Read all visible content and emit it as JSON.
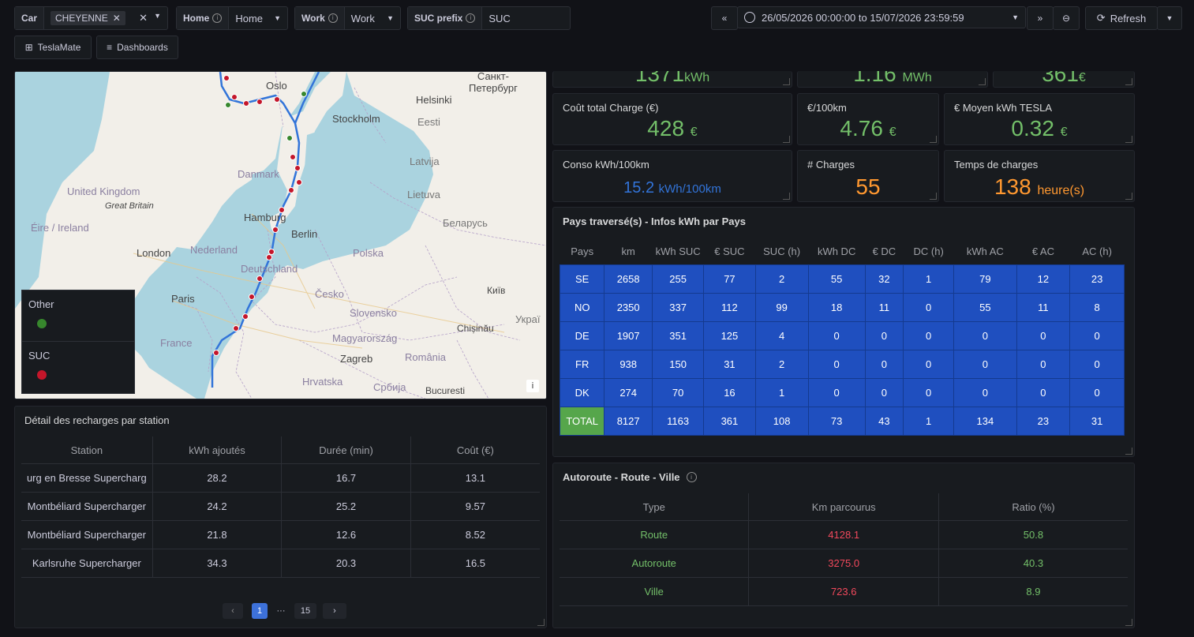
{
  "vars": {
    "car": {
      "label": "Car",
      "chip": "CHEYENNE"
    },
    "home": {
      "label": "Home",
      "value": "Home"
    },
    "work": {
      "label": "Work",
      "value": "Work"
    },
    "suc": {
      "label": "SUC prefix",
      "value": "SUC"
    }
  },
  "time_range": "26/05/2026 00:00:00 to 15/07/2026 23:59:59",
  "refresh_label": "Refresh",
  "nav": {
    "teslamate": "TeslaMate",
    "dashboards": "Dashboards"
  },
  "map": {
    "labels": {
      "oslo": "Oslo",
      "spb": "Санкт-\nПетербург",
      "helsinki": "Helsinki",
      "stockholm": "Stockholm",
      "eesti": "Eesti",
      "uk": "United Kingdom",
      "gb": "Great Britain",
      "ie": "Éire / Ireland",
      "danmark": "Danmark",
      "latvija": "Latvija",
      "lietuva": "Lietuva",
      "hamburg": "Hamburg",
      "berlin": "Berlin",
      "bel": "Беларусь",
      "london": "London",
      "nl": "Nederland",
      "polska": "Polska",
      "de": "Deutschland",
      "cesko": "Česko",
      "paris": "Paris",
      "kyiv": "Київ",
      "slov": "Slovensko",
      "ukr": "Украї",
      "france": "France",
      "mag": "Magyarország",
      "chis": "Chișinău",
      "zagreb": "Zagreb",
      "rom": "România",
      "hrv": "Hrvatska",
      "srb": "Србија",
      "buc": "Bucuresti"
    },
    "legend": [
      {
        "name": "Other",
        "color": "#37872d"
      },
      {
        "name": "SUC",
        "color": "#c4162a"
      }
    ]
  },
  "top_stats": [
    {
      "value": "1371",
      "unit": "kWh"
    },
    {
      "value": "1.16",
      "unit": "MWh"
    },
    {
      "value": "361",
      "unit": "€"
    }
  ],
  "stats": {
    "cost_total": {
      "title": "Coût total Charge (€)",
      "value": "428",
      "unit": "€",
      "color": "#73bf69"
    },
    "per100": {
      "title": "€/100km",
      "value": "4.76",
      "unit": "€",
      "color": "#73bf69"
    },
    "avg_kwh": {
      "title": "€ Moyen kWh TESLA",
      "value": "0.32",
      "unit": "€",
      "color": "#73bf69"
    },
    "conso": {
      "title": "Conso kWh/100km",
      "value": "15.2",
      "unit": "kWh/100km",
      "color": "#3274d9"
    },
    "charges": {
      "title": "# Charges",
      "value": "55",
      "unit": "",
      "color": "#ff9830"
    },
    "time": {
      "title": "Temps de charges",
      "value": "138",
      "unit": "heure(s)",
      "color": "#ff9830"
    }
  },
  "country_table": {
    "title": "Pays traversé(s) - Infos kWh par Pays",
    "headers": [
      "Pays",
      "km",
      "kWh SUC",
      "€ SUC",
      "SUC (h)",
      "kWh DC",
      "€ DC",
      "DC (h)",
      "kWh AC",
      "€ AC",
      "AC (h)"
    ],
    "rows": [
      [
        "SE",
        "2658",
        "255",
        "77",
        "2",
        "55",
        "32",
        "1",
        "79",
        "12",
        "23"
      ],
      [
        "NO",
        "2350",
        "337",
        "112",
        "99",
        "18",
        "11",
        "0",
        "55",
        "11",
        "8"
      ],
      [
        "DE",
        "1907",
        "351",
        "125",
        "4",
        "0",
        "0",
        "0",
        "0",
        "0",
        "0"
      ],
      [
        "FR",
        "938",
        "150",
        "31",
        "2",
        "0",
        "0",
        "0",
        "0",
        "0",
        "0"
      ],
      [
        "DK",
        "274",
        "70",
        "16",
        "1",
        "0",
        "0",
        "0",
        "0",
        "0",
        "0"
      ],
      [
        "TOTAL",
        "8127",
        "1163",
        "361",
        "108",
        "73",
        "43",
        "1",
        "134",
        "23",
        "31"
      ]
    ]
  },
  "station_table": {
    "title": "Détail des recharges par station",
    "headers": [
      "Station",
      "kWh ajoutés",
      "Durée (min)",
      "Coût (€)"
    ],
    "rows": [
      [
        "urg en Bresse Supercharg",
        "28.2",
        "16.7",
        "13.1"
      ],
      [
        "Montbéliard Supercharger",
        "24.2",
        "25.2",
        "9.57"
      ],
      [
        "Montbéliard Supercharger",
        "21.8",
        "12.6",
        "8.52"
      ],
      [
        "Karlsruhe Supercharger",
        "34.3",
        "20.3",
        "16.5"
      ]
    ],
    "pagination": {
      "prev": "‹",
      "current": "1",
      "ellipsis": "···",
      "last": "15",
      "next": "›"
    }
  },
  "road_table": {
    "title": "Autoroute - Route - Ville",
    "headers": [
      "Type",
      "Km parcourus",
      "Ratio (%)"
    ],
    "rows": [
      [
        "Route",
        "4128.1",
        "50.8"
      ],
      [
        "Autoroute",
        "3275.0",
        "40.3"
      ],
      [
        "Ville",
        "723.6",
        "8.9"
      ]
    ]
  }
}
